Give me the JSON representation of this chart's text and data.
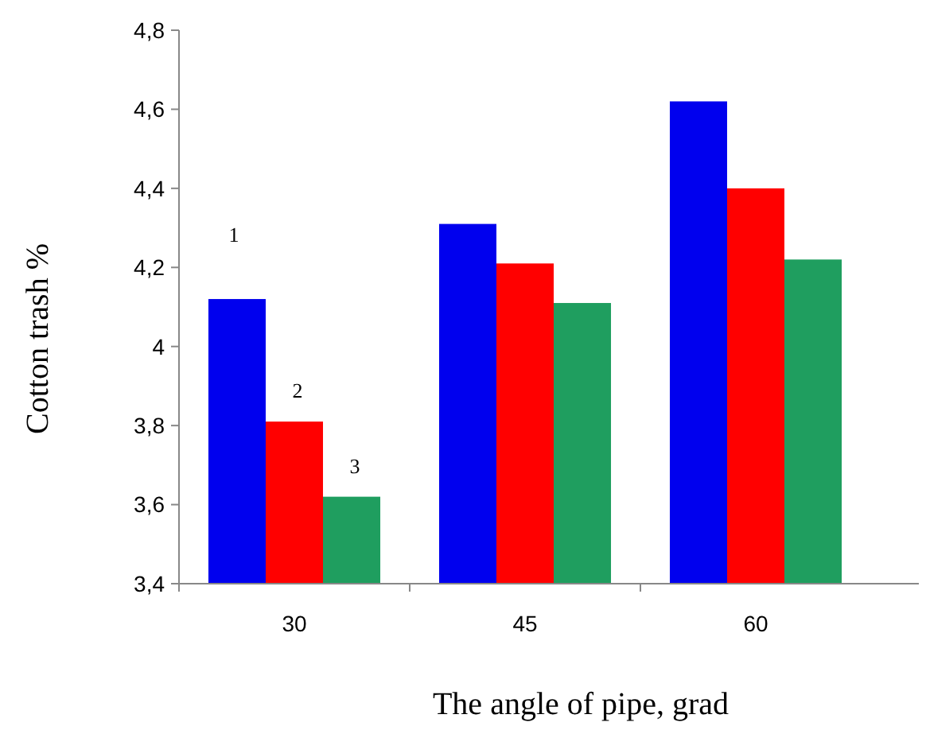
{
  "chart_data": {
    "type": "bar",
    "xlabel": "The angle of pipe, grad",
    "ylabel": "Cotton trash %",
    "categories": [
      "30",
      "45",
      "60"
    ],
    "series": [
      {
        "name": "1",
        "color": "#0000ee",
        "values": [
          4.12,
          4.31,
          4.62
        ]
      },
      {
        "name": "2",
        "color": "#ff0000",
        "values": [
          3.81,
          4.21,
          4.4
        ]
      },
      {
        "name": "3",
        "color": "#1f9e5f",
        "values": [
          3.62,
          4.11,
          4.22
        ]
      }
    ],
    "ylim": [
      3.4,
      4.8
    ],
    "yticks": [
      {
        "value": 3.4,
        "label": "3,4"
      },
      {
        "value": 3.6,
        "label": "3,6"
      },
      {
        "value": 3.8,
        "label": "3,8"
      },
      {
        "value": 4,
        "label": "4"
      },
      {
        "value": 4.2,
        "label": "4,2"
      },
      {
        "value": 4.4,
        "label": "4,4"
      },
      {
        "value": 4.6,
        "label": "4,6"
      },
      {
        "value": 4.8,
        "label": "4,8"
      }
    ],
    "grid": false
  }
}
